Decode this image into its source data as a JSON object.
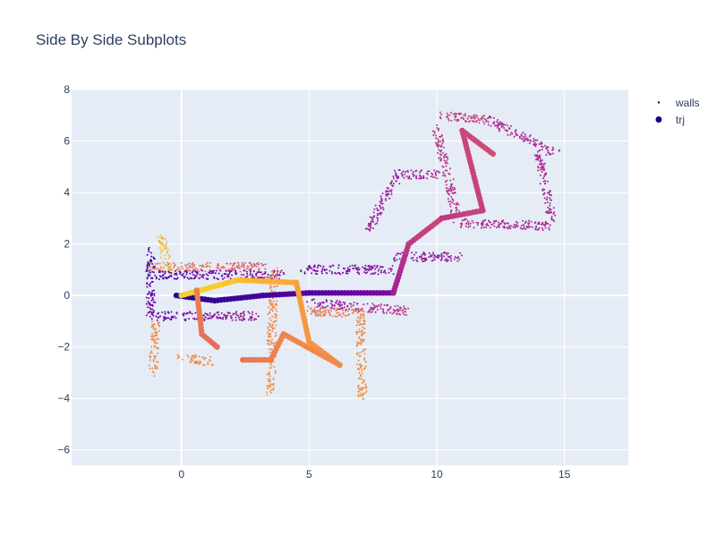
{
  "chart_data": {
    "type": "scatter",
    "title": "Side By Side Subplots",
    "xlim": [
      -4.3,
      17.5
    ],
    "ylim": [
      -6.6,
      8
    ],
    "x_ticks": [
      0,
      5,
      10,
      15
    ],
    "y_ticks": [
      -6,
      -4,
      -2,
      0,
      2,
      4,
      6,
      8
    ],
    "grid": true,
    "legend_position": "top-right",
    "colors": {
      "plot_background": "#e5ecf6",
      "grid": "#ffffff",
      "text": "#2a3f5f",
      "legend_marker": "#0d0887",
      "colorscale": [
        "#0d0887",
        "#6a00a8",
        "#b12a90",
        "#e16462",
        "#fca636",
        "#f0f921"
      ]
    },
    "series": [
      {
        "name": "walls",
        "marker_size": "small",
        "segments": [
          {
            "x0": -1.2,
            "y0": 1.8,
            "x1": -1.2,
            "y1": -0.8,
            "c0": 0.1,
            "c1": 0.25
          },
          {
            "x0": -1.1,
            "y0": 1.1,
            "x1": 3.2,
            "y1": 1.1,
            "c0": 0.7,
            "c1": 0.55
          },
          {
            "x0": -1.0,
            "y0": 0.8,
            "x1": 4.0,
            "y1": 0.8,
            "c0": 0.15,
            "c1": 0.3
          },
          {
            "x0": -1.0,
            "y0": -0.8,
            "x1": 3.0,
            "y1": -0.8,
            "c0": 0.2,
            "c1": 0.35
          },
          {
            "x0": 4.8,
            "y0": 1.0,
            "x1": 8.3,
            "y1": 1.0,
            "c0": 0.25,
            "c1": 0.3
          },
          {
            "x0": 5.0,
            "y0": -0.3,
            "x1": 8.8,
            "y1": -0.6,
            "c0": 0.3,
            "c1": 0.45
          },
          {
            "x0": 8.3,
            "y0": 1.5,
            "x1": 11.0,
            "y1": 1.5,
            "c0": 0.3,
            "c1": 0.35
          },
          {
            "x0": 7.3,
            "y0": 2.5,
            "x1": 8.5,
            "y1": 4.7,
            "c0": 0.35,
            "c1": 0.35
          },
          {
            "x0": 8.3,
            "y0": 4.7,
            "x1": 10.0,
            "y1": 4.7,
            "c0": 0.35,
            "c1": 0.4
          },
          {
            "x0": 10.2,
            "y0": 7.0,
            "x1": 12.0,
            "y1": 6.8,
            "c0": 0.45,
            "c1": 0.5
          },
          {
            "x0": 10.0,
            "y0": 6.5,
            "x1": 10.8,
            "y1": 3.0,
            "c0": 0.45,
            "c1": 0.42
          },
          {
            "x0": 11.0,
            "y0": 2.8,
            "x1": 14.5,
            "y1": 2.7,
            "c0": 0.4,
            "c1": 0.38
          },
          {
            "x0": 12.0,
            "y0": 6.8,
            "x1": 14.7,
            "y1": 5.5,
            "c0": 0.4,
            "c1": 0.38
          },
          {
            "x0": 14.0,
            "y0": 5.5,
            "x1": 14.5,
            "y1": 3.0,
            "c0": 0.38,
            "c1": 0.38
          },
          {
            "x0": 3.6,
            "y0": 1.0,
            "x1": 3.5,
            "y1": -3.8,
            "c0": 0.7,
            "c1": 0.75
          },
          {
            "x0": 7.0,
            "y0": -0.5,
            "x1": 7.1,
            "y1": -4.0,
            "c0": 0.7,
            "c1": 0.75
          },
          {
            "x0": -1.0,
            "y0": -1.0,
            "x1": -1.1,
            "y1": -3.0,
            "c0": 0.72,
            "c1": 0.72
          },
          {
            "x0": 5.0,
            "y0": -0.6,
            "x1": 7.0,
            "y1": -0.7,
            "c0": 0.65,
            "c1": 0.7
          },
          {
            "x0": 0.0,
            "y0": -2.4,
            "x1": 1.2,
            "y1": -2.6,
            "c0": 0.72,
            "c1": 0.72
          },
          {
            "x0": -0.8,
            "y0": 2.3,
            "x1": -0.5,
            "y1": 1.0,
            "c0": 0.85,
            "c1": 0.85
          }
        ]
      },
      {
        "name": "trj",
        "marker_size": "large",
        "segments": [
          {
            "x0": -0.2,
            "y0": 0.0,
            "x1": 1.3,
            "y1": -0.2,
            "c0": 0.05,
            "c1": 0.08
          },
          {
            "x0": 1.3,
            "y0": -0.2,
            "x1": 3.2,
            "y1": 0.0,
            "c0": 0.08,
            "c1": 0.12
          },
          {
            "x0": 3.2,
            "y0": 0.0,
            "x1": 5.0,
            "y1": 0.1,
            "c0": 0.12,
            "c1": 0.15
          },
          {
            "x0": 5.0,
            "y0": 0.1,
            "x1": 8.3,
            "y1": 0.1,
            "c0": 0.15,
            "c1": 0.25
          },
          {
            "x0": 8.3,
            "y0": 0.1,
            "x1": 8.9,
            "y1": 2.0,
            "c0": 0.35,
            "c1": 0.45
          },
          {
            "x0": 8.9,
            "y0": 2.0,
            "x1": 10.2,
            "y1": 3.0,
            "c0": 0.45,
            "c1": 0.5
          },
          {
            "x0": 10.2,
            "y0": 3.0,
            "x1": 11.8,
            "y1": 3.3,
            "c0": 0.45,
            "c1": 0.5
          },
          {
            "x0": 11.8,
            "y0": 3.3,
            "x1": 11.0,
            "y1": 6.4,
            "c0": 0.48,
            "c1": 0.5
          },
          {
            "x0": 11.0,
            "y0": 6.4,
            "x1": 12.2,
            "y1": 5.5,
            "c0": 0.5,
            "c1": 0.52
          },
          {
            "x0": 0.0,
            "y0": 0.0,
            "x1": 2.2,
            "y1": 0.6,
            "c0": 0.9,
            "c1": 0.88
          },
          {
            "x0": 2.2,
            "y0": 0.6,
            "x1": 4.5,
            "y1": 0.5,
            "c0": 0.85,
            "c1": 0.8
          },
          {
            "x0": 4.5,
            "y0": 0.5,
            "x1": 5.0,
            "y1": -1.8,
            "c0": 0.78,
            "c1": 0.75
          },
          {
            "x0": 5.0,
            "y0": -1.8,
            "x1": 6.2,
            "y1": -2.7,
            "c0": 0.75,
            "c1": 0.72
          },
          {
            "x0": 6.2,
            "y0": -2.7,
            "x1": 4.0,
            "y1": -1.5,
            "c0": 0.72,
            "c1": 0.7
          },
          {
            "x0": 4.0,
            "y0": -1.5,
            "x1": 3.5,
            "y1": -2.5,
            "c0": 0.7,
            "c1": 0.68
          },
          {
            "x0": 3.5,
            "y0": -2.5,
            "x1": 2.4,
            "y1": -2.5,
            "c0": 0.68,
            "c1": 0.65
          },
          {
            "x0": 0.6,
            "y0": 0.2,
            "x1": 0.8,
            "y1": -1.5,
            "c0": 0.68,
            "c1": 0.65
          },
          {
            "x0": 0.8,
            "y0": -1.5,
            "x1": 1.4,
            "y1": -2.0,
            "c0": 0.65,
            "c1": 0.62
          }
        ]
      }
    ]
  }
}
